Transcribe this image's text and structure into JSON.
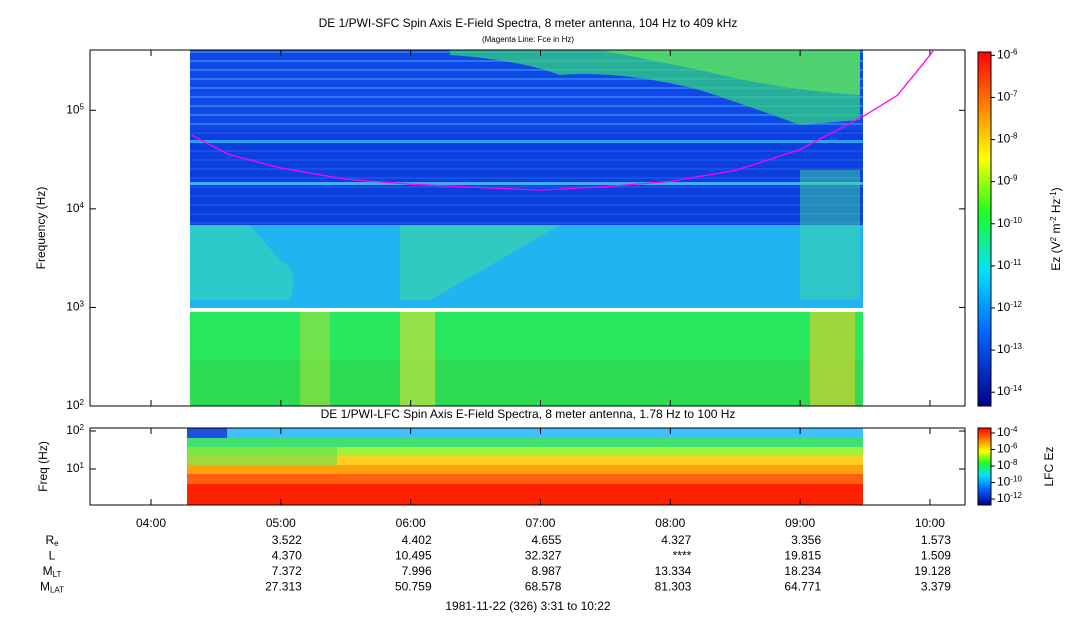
{
  "chart_data": [
    {
      "type": "spectrogram",
      "title": "DE 1/PWI-SFC  Spin Axis E-Field Spectra, 8 meter antenna, 104 Hz to 409 kHz",
      "subtitle": "(Magenta Line: Fce in Hz)",
      "ylabel": "Frequency (Hz)",
      "log_y": true,
      "ylim": [
        100,
        409000
      ],
      "yticks": [
        {
          "value": 100,
          "label": "10^2"
        },
        {
          "value": 1000,
          "label": "10^3"
        },
        {
          "value": 10000,
          "label": "10^4"
        },
        {
          "value": 100000,
          "label": "10^5"
        }
      ],
      "colorbar": {
        "label": "Ez (V^2 m^-2 Hz^-1)",
        "log": true,
        "lim": [
          4.7e-15,
          1.2e-06
        ],
        "ticks": [
          {
            "value": 1e-06,
            "label": "10^-6"
          },
          {
            "value": 1e-07,
            "label": "10^-7"
          },
          {
            "value": 1e-08,
            "label": "10^-8"
          },
          {
            "value": 1e-09,
            "label": "10^-9"
          },
          {
            "value": 1e-10,
            "label": "10^-10"
          },
          {
            "value": 1e-11,
            "label": "10^-11"
          },
          {
            "value": 1e-12,
            "label": "10^-12"
          },
          {
            "value": 1e-13,
            "label": "10^-13"
          },
          {
            "value": 1e-14,
            "label": "10^-14"
          }
        ]
      },
      "fce_line": {
        "color": "#ff00ff",
        "x": [
          4.31,
          4.6,
          5.0,
          5.5,
          6.0,
          6.5,
          7.0,
          7.5,
          8.0,
          8.5,
          9.0,
          9.5,
          9.75,
          9.95,
          10.03
        ],
        "values": [
          56000,
          35500,
          26000,
          20000,
          17800,
          16500,
          15500,
          16800,
          19000,
          24500,
          40000,
          89000,
          142000,
          300000,
          409000
        ]
      }
    },
    {
      "type": "spectrogram",
      "title": "DE 1/PWI-LFC  Spin Axis E-Field Spectra, 8 meter antenna, 1.78 Hz to 100 Hz",
      "ylabel": "Freq (Hz)",
      "log_y": true,
      "ylim": [
        1.13,
        120
      ],
      "yticks": [
        {
          "value": 10,
          "label": "10^1"
        },
        {
          "value": 100,
          "label": "10^2"
        }
      ],
      "colorbar": {
        "label": "LFC Ez",
        "log": true,
        "lim": [
          1.9e-13,
          0.0004
        ],
        "ticks": [
          {
            "value": 0.0001,
            "label": "10^-4"
          },
          {
            "value": 1e-06,
            "label": "10^-6"
          },
          {
            "value": 1e-08,
            "label": "10^-8"
          },
          {
            "value": 1e-10,
            "label": "10^-10"
          },
          {
            "value": 1e-12,
            "label": "10^-12"
          }
        ]
      }
    }
  ],
  "x_axis": {
    "xlim": [
      3.53,
      10.27
    ],
    "xticks": [
      {
        "value": 4,
        "label": "04:00"
      },
      {
        "value": 5,
        "label": "05:00"
      },
      {
        "value": 6,
        "label": "06:00"
      },
      {
        "value": 7,
        "label": "07:00"
      },
      {
        "value": 8,
        "label": "08:00"
      },
      {
        "value": 9,
        "label": "09:00"
      },
      {
        "value": 10,
        "label": "10:00"
      }
    ]
  },
  "ephemeris": [
    {
      "label": "R_e",
      "values": [
        null,
        "3.522",
        "4.402",
        "4.655",
        "4.327",
        "3.356",
        "1.573"
      ]
    },
    {
      "label": "L",
      "values": [
        null,
        "4.370",
        "10.495",
        "32.327",
        "****",
        "19.815",
        "1.509"
      ]
    },
    {
      "label": "M_LT",
      "values": [
        null,
        "7.372",
        "7.996",
        "8.987",
        "13.334",
        "18.234",
        "19.128"
      ]
    },
    {
      "label": "M_LAT",
      "values": [
        null,
        "27.313",
        "50.759",
        "68.578",
        "81.303",
        "64.771",
        "3.379"
      ]
    }
  ],
  "footer": "1981-11-22 (326) 3:31 to 10:22"
}
